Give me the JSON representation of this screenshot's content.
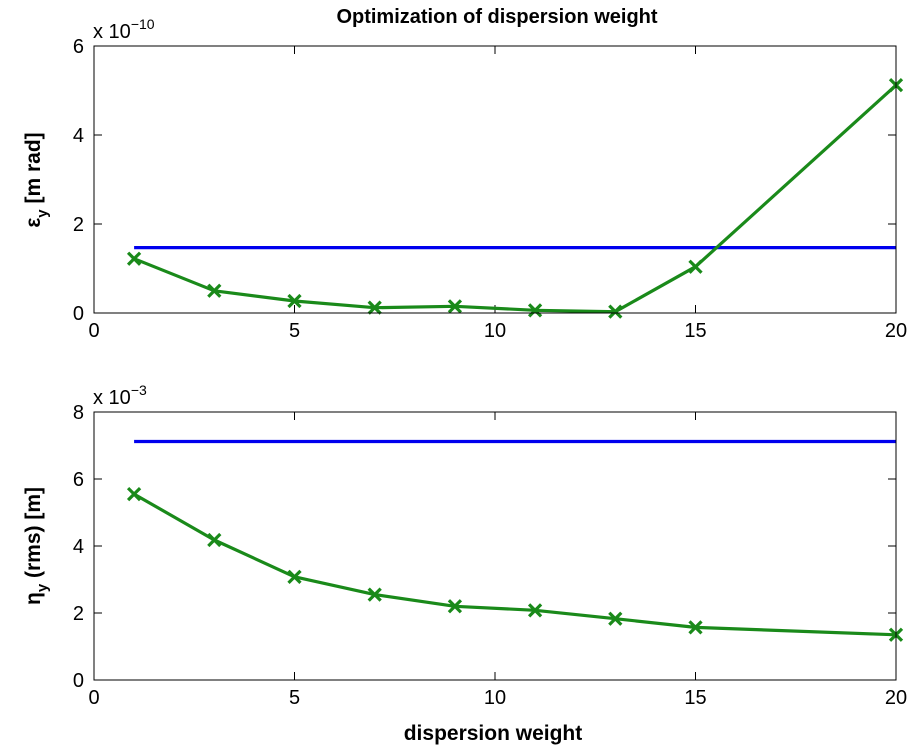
{
  "chart_data": [
    {
      "type": "line",
      "title": "Optimization of dispersion weight",
      "ylabel": {
        "main": "ε",
        "sub": "y",
        "rest": " [m rad]"
      },
      "scale": {
        "prefix": "x 10",
        "exponent": "−10"
      },
      "xlim": [
        0,
        20
      ],
      "ylim": [
        0,
        6
      ],
      "xticks": [
        0,
        5,
        10,
        15,
        20
      ],
      "yticks": [
        0,
        2,
        4,
        6
      ],
      "series": [
        {
          "style": "line",
          "color": "#0000ee",
          "x": [
            1,
            20
          ],
          "y": [
            1.47,
            1.47
          ]
        },
        {
          "style": "line-x-markers",
          "color": "#1a8a1a",
          "x": [
            1,
            3,
            5,
            7,
            9,
            11,
            13,
            15,
            20
          ],
          "y": [
            1.22,
            0.5,
            0.27,
            0.12,
            0.15,
            0.06,
            0.03,
            1.04,
            5.12
          ]
        }
      ]
    },
    {
      "type": "line",
      "xlabel": "dispersion weight",
      "ylabel": {
        "main": "η",
        "sub": "y",
        "rest": " (rms) [m]"
      },
      "scale": {
        "prefix": "x 10",
        "exponent": "−3"
      },
      "xlim": [
        0,
        20
      ],
      "ylim": [
        0,
        8
      ],
      "xticks": [
        0,
        5,
        10,
        15,
        20
      ],
      "yticks": [
        0,
        2,
        4,
        6,
        8
      ],
      "series": [
        {
          "style": "line",
          "color": "#0000ee",
          "x": [
            1,
            20
          ],
          "y": [
            7.12,
            7.12
          ]
        },
        {
          "style": "line-x-markers",
          "color": "#1a8a1a",
          "x": [
            1,
            3,
            5,
            7,
            9,
            11,
            13,
            15,
            20
          ],
          "y": [
            5.55,
            4.18,
            3.08,
            2.55,
            2.2,
            2.08,
            1.83,
            1.57,
            1.35
          ]
        }
      ]
    }
  ]
}
